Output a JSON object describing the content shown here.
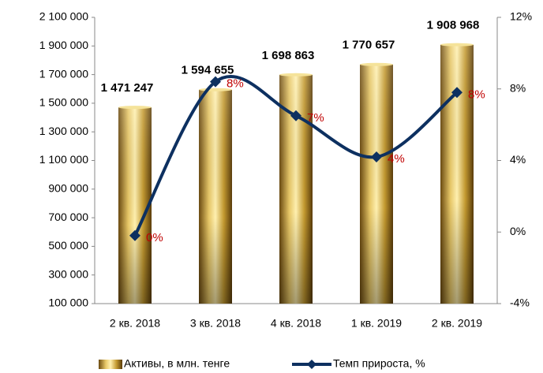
{
  "chart_data": {
    "type": "bar-line",
    "categories": [
      "2 кв. 2018",
      "3 кв. 2018",
      "4 кв. 2018",
      "1 кв. 2019",
      "2 кв. 2019"
    ],
    "series": [
      {
        "name": "Активы, в млн. тенге",
        "type": "bar",
        "color": "#c9a232",
        "values": [
          1471247,
          1594655,
          1698863,
          1770657,
          1908968
        ],
        "value_labels": [
          "1 471 247",
          "1 594 655",
          "1 698 863",
          "1 770 657",
          "1 908 968"
        ]
      },
      {
        "name": "Темп прироста, %",
        "type": "line",
        "axis": "y2",
        "color": "#0d3060",
        "values": [
          -0.2,
          8.4,
          6.5,
          4.2,
          7.8
        ],
        "value_labels": [
          "0%",
          "8%",
          "7%",
          "4%",
          "8%"
        ]
      }
    ],
    "ylim": [
      100000,
      2100000
    ],
    "yticks": [
      {
        "value": 100000,
        "label": "100 000"
      },
      {
        "value": 300000,
        "label": "300 000"
      },
      {
        "value": 500000,
        "label": "500 000"
      },
      {
        "value": 700000,
        "label": "700 000"
      },
      {
        "value": 900000,
        "label": "900 000"
      },
      {
        "value": 1100000,
        "label": "1 100 000"
      },
      {
        "value": 1300000,
        "label": "1 300 000"
      },
      {
        "value": 1500000,
        "label": "1 500 000"
      },
      {
        "value": 1700000,
        "label": "1 700 000"
      },
      {
        "value": 1900000,
        "label": "1 900 000"
      },
      {
        "value": 2100000,
        "label": "2 100 000"
      }
    ],
    "y2lim": [
      -4,
      12
    ],
    "y2ticks": [
      {
        "value": -4,
        "label": "-4%"
      },
      {
        "value": 0,
        "label": "0%"
      },
      {
        "value": 4,
        "label": "4%"
      },
      {
        "value": 8,
        "label": "8%"
      },
      {
        "value": 12,
        "label": "12%"
      }
    ],
    "grid": false,
    "legend": "bottom"
  }
}
